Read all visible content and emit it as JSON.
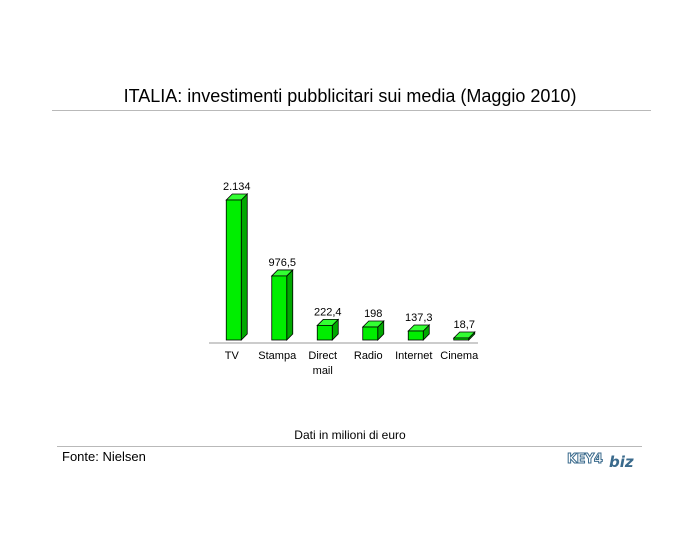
{
  "chart_data": {
    "type": "bar",
    "title": "ITALIA: investimenti pubblicitari sui media (Maggio 2010)",
    "categories": [
      "TV",
      "Stampa",
      "Direct mail",
      "Radio",
      "Internet",
      "Cinema"
    ],
    "values": [
      2134,
      976.5,
      222.4,
      198,
      137.3,
      18.7
    ],
    "value_labels": [
      "2.134",
      "976,5",
      "222,4",
      "198",
      "137,3",
      "18,7"
    ],
    "xlabel": "",
    "ylabel": "",
    "ylim": [
      0,
      2134
    ],
    "grid": false,
    "legend": "none",
    "bar_color": "#00ee00",
    "bar_side_color": "#00a800",
    "bar_top_color": "#33ff33"
  },
  "caption": "Dati in milioni di euro",
  "source": "Fonte: Nielsen",
  "logo": {
    "key": "KEY4",
    "biz": "biz"
  }
}
